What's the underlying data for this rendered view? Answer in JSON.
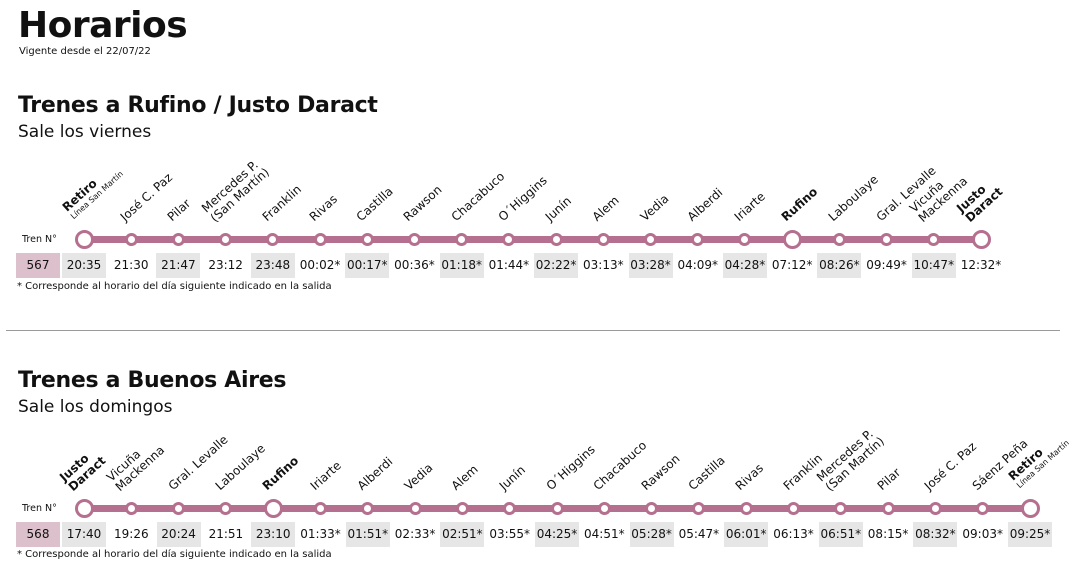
{
  "page": {
    "title": "Horarios",
    "valid_from": "Vigente desde el 22/07/22"
  },
  "colors": {
    "accent": "#b56f8f",
    "train_number_bg": "#dcc1cd",
    "shaded_cell": "#e6e6e6"
  },
  "sections": [
    {
      "title": "Trenes a Rufino / Justo Daract",
      "subtitle": "Sale los viernes",
      "tren_label": "Tren N°",
      "train_number": "567",
      "note": "* Corresponde al horario del día siguiente indicado en la salida",
      "stations": [
        {
          "name": "Retiro",
          "sub": "Línea San Martín",
          "bold": true,
          "big": true,
          "time": "20:35",
          "shaded": true
        },
        {
          "name": "José C. Paz",
          "time": "21:30",
          "shaded": false
        },
        {
          "name": "Pilar",
          "time": "21:47",
          "shaded": true
        },
        {
          "name": "Mercedes P.",
          "line2": "(San Martín)",
          "time": "23:12",
          "shaded": false
        },
        {
          "name": "Franklin",
          "time": "23:48",
          "shaded": true
        },
        {
          "name": "Rivas",
          "time": "00:02*",
          "shaded": false
        },
        {
          "name": "Castilla",
          "time": "00:17*",
          "shaded": true
        },
        {
          "name": "Rawson",
          "time": "00:36*",
          "shaded": false
        },
        {
          "name": "Chacabuco",
          "time": "01:18*",
          "shaded": true
        },
        {
          "name": "O´Higgins",
          "time": "01:44*",
          "shaded": false
        },
        {
          "name": "Junín",
          "time": "02:22*",
          "shaded": true
        },
        {
          "name": "Alem",
          "time": "03:13*",
          "shaded": false
        },
        {
          "name": "Vedia",
          "time": "03:28*",
          "shaded": true
        },
        {
          "name": "Alberdi",
          "time": "04:09*",
          "shaded": false
        },
        {
          "name": "Iriarte",
          "time": "04:28*",
          "shaded": true
        },
        {
          "name": "Rufino",
          "bold": true,
          "big": true,
          "time": "07:12*",
          "shaded": false
        },
        {
          "name": "Laboulaye",
          "time": "08:26*",
          "shaded": true
        },
        {
          "name": "Gral. Levalle",
          "time": "09:49*",
          "shaded": false
        },
        {
          "name": "Vicuña",
          "line2": "Mackenna",
          "time": "10:47*",
          "shaded": true
        },
        {
          "name": "Justo",
          "line2": "Daract",
          "bold": true,
          "big": true,
          "time": "12:32*",
          "shaded": false
        }
      ]
    },
    {
      "title": "Trenes a Buenos Aires",
      "subtitle": "Sale los domingos",
      "tren_label": "Tren N°",
      "train_number": "568",
      "note": "* Corresponde al horario del día siguiente indicado en la salida",
      "stations": [
        {
          "name": "Justo",
          "line2": "Daract",
          "bold": true,
          "big": true,
          "time": "17:40",
          "shaded": true
        },
        {
          "name": "Vicuña",
          "line2": "Mackenna",
          "time": "19:26",
          "shaded": false
        },
        {
          "name": "Gral. Levalle",
          "time": "20:24",
          "shaded": true
        },
        {
          "name": "Laboulaye",
          "time": "21:51",
          "shaded": false
        },
        {
          "name": "Rufino",
          "bold": true,
          "big": true,
          "time": "23:10",
          "shaded": true
        },
        {
          "name": "Iriarte",
          "time": "01:33*",
          "shaded": false
        },
        {
          "name": "Alberdi",
          "time": "01:51*",
          "shaded": true
        },
        {
          "name": "Vedia",
          "time": "02:33*",
          "shaded": false
        },
        {
          "name": "Alem",
          "time": "02:51*",
          "shaded": true
        },
        {
          "name": "Junín",
          "time": "03:55*",
          "shaded": false
        },
        {
          "name": "O´Higgins",
          "time": "04:25*",
          "shaded": true
        },
        {
          "name": "Chacabuco",
          "time": "04:51*",
          "shaded": false
        },
        {
          "name": "Rawson",
          "time": "05:28*",
          "shaded": true
        },
        {
          "name": "Castilla",
          "time": "05:47*",
          "shaded": false
        },
        {
          "name": "Rivas",
          "time": "06:01*",
          "shaded": true
        },
        {
          "name": "Franklin",
          "time": "06:13*",
          "shaded": false
        },
        {
          "name": "Mercedes P.",
          "line2": "(San Martín)",
          "time": "06:51*",
          "shaded": true
        },
        {
          "name": "Pilar",
          "time": "08:15*",
          "shaded": false
        },
        {
          "name": "José C. Paz",
          "time": "08:32*",
          "shaded": true
        },
        {
          "name": "Sáenz Peña",
          "time": "09:03*",
          "shaded": false
        },
        {
          "name": "Retiro",
          "sub": "Línea San Martín",
          "bold": true,
          "big": true,
          "time": "09:25*",
          "shaded": true
        }
      ]
    }
  ]
}
